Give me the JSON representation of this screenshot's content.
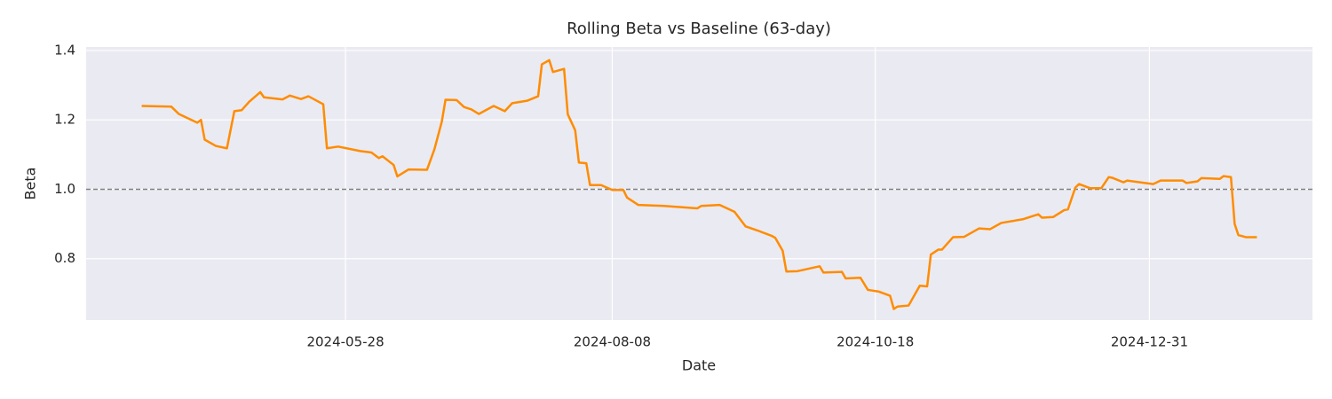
{
  "chart_data": {
    "type": "line",
    "title": "Rolling Beta vs Baseline (63-day)",
    "x_label": "Date",
    "y_label": "Beta",
    "color": "#ff8c00",
    "grid": true,
    "baseline": 1,
    "baseline_color": "#808080",
    "xlim": [
      "2024-03-19",
      "2025-02-13"
    ],
    "xticks": [
      "2024-05-28",
      "2024-08-08",
      "2024-10-18",
      "2024-12-31"
    ],
    "ylim": [
      0.623,
      1.41
    ],
    "yticks": [
      0.8,
      {
        "value": 1,
        "label": "1.0"
      },
      1.2,
      1.4
    ],
    "x": [
      "2024-04-03",
      "2024-04-11",
      "2024-04-13",
      "2024-04-18",
      "2024-04-19",
      "2024-04-20",
      "2024-04-23",
      "2024-04-26",
      "2024-04-28",
      "2024-04-30",
      "2024-05-02",
      "2024-05-05",
      "2024-05-06",
      "2024-05-11",
      "2024-05-13",
      "2024-05-16",
      "2024-05-18",
      "2024-05-22",
      "2024-05-23",
      "2024-05-26",
      "2024-06-01",
      "2024-06-04",
      "2024-06-06",
      "2024-06-07",
      "2024-06-10",
      "2024-06-11",
      "2024-06-14",
      "2024-06-19",
      "2024-06-21",
      "2024-06-23",
      "2024-06-24",
      "2024-06-27",
      "2024-06-29",
      "2024-07-01",
      "2024-07-03",
      "2024-07-07",
      "2024-07-10",
      "2024-07-12",
      "2024-07-16",
      "2024-07-19",
      "2024-07-20",
      "2024-07-22",
      "2024-07-23",
      "2024-07-26",
      "2024-07-27",
      "2024-07-29",
      "2024-07-30",
      "2024-08-01",
      "2024-08-02",
      "2024-08-05",
      "2024-08-08",
      "2024-08-11",
      "2024-08-12",
      "2024-08-15",
      "2024-08-22",
      "2024-08-31",
      "2024-09-01",
      "2024-09-06",
      "2024-09-10",
      "2024-09-13",
      "2024-09-16",
      "2024-09-20",
      "2024-09-21",
      "2024-09-23",
      "2024-09-24",
      "2024-09-27",
      "2024-10-03",
      "2024-10-04",
      "2024-10-09",
      "2024-10-10",
      "2024-10-14",
      "2024-10-16",
      "2024-10-19",
      "2024-10-22",
      "2024-10-23",
      "2024-10-24",
      "2024-10-27",
      "2024-10-30",
      "2024-11-01",
      "2024-11-02",
      "2024-11-04",
      "2024-11-05",
      "2024-11-08",
      "2024-11-11",
      "2024-11-15",
      "2024-11-18",
      "2024-11-21",
      "2024-11-27",
      "2024-12-01",
      "2024-12-02",
      "2024-12-05",
      "2024-12-08",
      "2024-12-09",
      "2024-12-11",
      "2024-12-12",
      "2024-12-15",
      "2024-12-18",
      "2024-12-20",
      "2024-12-21",
      "2024-12-24",
      "2024-12-25",
      "2025-01-01",
      "2025-01-03",
      "2025-01-09",
      "2025-01-10",
      "2025-01-13",
      "2025-01-14",
      "2025-01-19",
      "2025-01-20",
      "2025-01-22",
      "2025-01-23",
      "2025-01-24",
      "2025-01-26",
      "2025-01-29"
    ],
    "values": [
      1.24,
      1.238,
      1.217,
      1.192,
      1.2,
      1.143,
      1.125,
      1.118,
      1.225,
      1.228,
      1.252,
      1.28,
      1.265,
      1.259,
      1.27,
      1.26,
      1.268,
      1.245,
      1.118,
      1.123,
      1.11,
      1.106,
      1.09,
      1.095,
      1.07,
      1.037,
      1.057,
      1.056,
      1.115,
      1.195,
      1.258,
      1.257,
      1.237,
      1.23,
      1.217,
      1.24,
      1.225,
      1.248,
      1.255,
      1.268,
      1.36,
      1.372,
      1.338,
      1.347,
      1.216,
      1.17,
      1.077,
      1.075,
      1.012,
      1.012,
      0.998,
      0.998,
      0.976,
      0.955,
      0.952,
      0.945,
      0.952,
      0.955,
      0.935,
      0.893,
      0.882,
      0.866,
      0.86,
      0.823,
      0.763,
      0.764,
      0.778,
      0.76,
      0.762,
      0.743,
      0.745,
      0.71,
      0.705,
      0.693,
      0.655,
      0.662,
      0.665,
      0.722,
      0.72,
      0.812,
      0.826,
      0.826,
      0.862,
      0.863,
      0.887,
      0.885,
      0.903,
      0.914,
      0.928,
      0.918,
      0.92,
      0.94,
      0.942,
      1.005,
      1.015,
      1.003,
      1.003,
      1.035,
      1.033,
      1.02,
      1.025,
      1.015,
      1.025,
      1.025,
      1.018,
      1.023,
      1.032,
      1.03,
      1.038,
      1.035,
      0.9,
      0.868,
      0.862,
      0.862
    ]
  }
}
